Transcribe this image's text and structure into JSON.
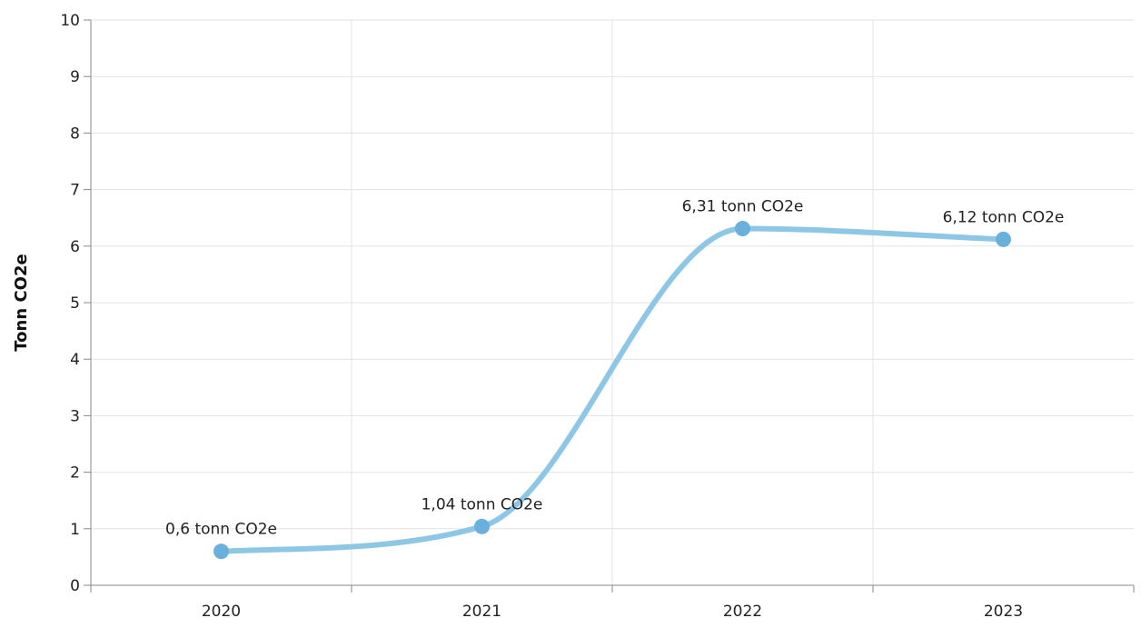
{
  "chart_data": {
    "type": "line",
    "title": "",
    "xlabel": "",
    "ylabel": "Tonn CO2e",
    "categories": [
      "2020",
      "2021",
      "2022",
      "2023"
    ],
    "series": [
      {
        "values": [
          0.6,
          1.04,
          6.31,
          6.12
        ],
        "labels": [
          "0,6 tonn CO2e",
          "1,04 tonn CO2e",
          "6,31 tonn CO2e",
          "6,12 tonn CO2e"
        ],
        "color": "#6ab0dc",
        "line_color": "#8ec7e6"
      }
    ],
    "ylim": [
      0,
      10
    ],
    "yticks": [
      0,
      1,
      2,
      3,
      4,
      5,
      6,
      7,
      8,
      9,
      10
    ],
    "grid": true,
    "smooth": true
  }
}
